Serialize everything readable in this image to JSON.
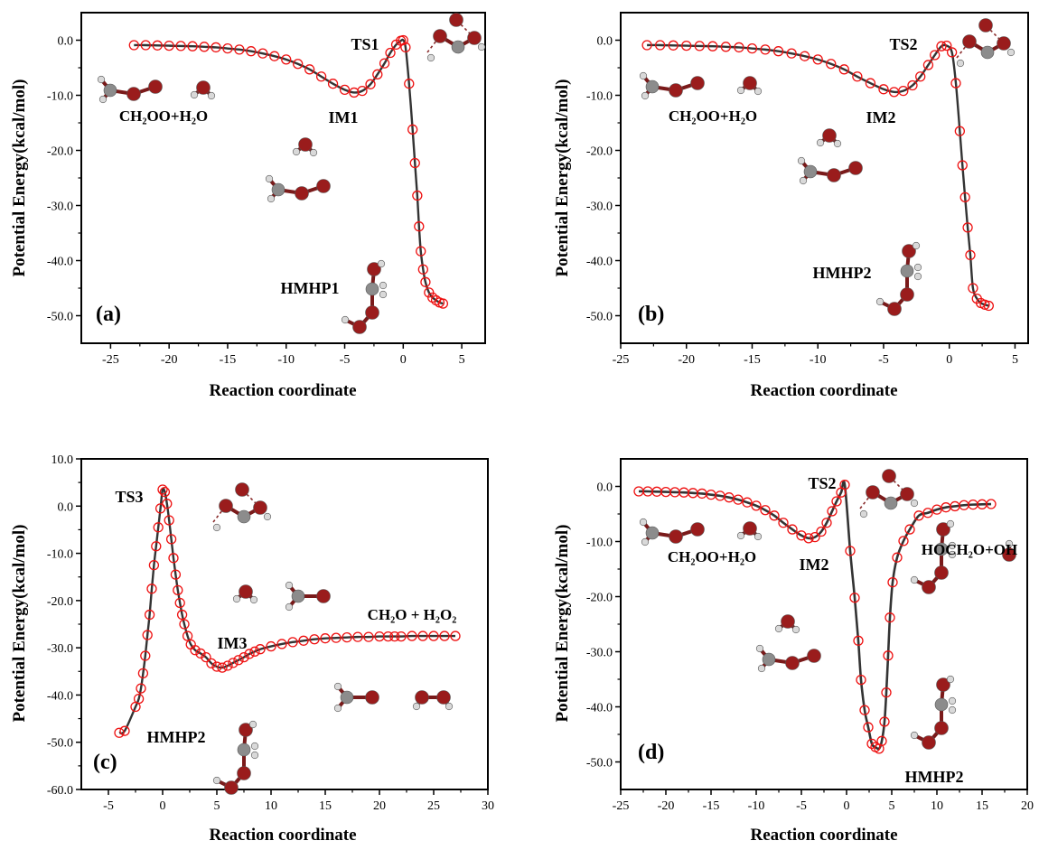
{
  "colors": {
    "curve": "#333333",
    "marker": "#ee1111",
    "oxygen": "#9a1c1c",
    "carbon": "#8c8c8c",
    "hydrogen": "#d9d9d9"
  },
  "chart_data": [
    {
      "type": "line",
      "panel_label": "(a)",
      "xlabel": "Reaction coordinate",
      "ylabel": "Potential Energy(kcal/mol)",
      "xlim": [
        -27.5,
        7
      ],
      "ylim": [
        -55,
        5
      ],
      "xticks": [
        -25,
        -20,
        -15,
        -10,
        -5,
        0,
        5
      ],
      "yticks": [
        0,
        -10,
        -20,
        -30,
        -40,
        -50
      ],
      "ytick_labels": [
        "0.0",
        "-10.0",
        "-20.0",
        "-30.0",
        "-40.0",
        "-50.0"
      ],
      "annotations": [
        {
          "text": "TS1",
          "x": -3.5,
          "y": -2
        },
        {
          "text": "CH₂OO+H₂O",
          "x": -20,
          "y": -14
        },
        {
          "text": "IM1",
          "x": -5.2,
          "y": -14.7
        },
        {
          "text": "HMHP1",
          "x": -7.5,
          "y": -46.8
        }
      ],
      "x": [
        -23,
        -22,
        -21,
        -20,
        -19,
        -18,
        -17,
        -16,
        -15,
        -14,
        -13,
        -12,
        -11,
        -10,
        -9,
        -8,
        -7,
        -6,
        -5,
        -4.2,
        -3.5,
        -2.8,
        -2.2,
        -1.6,
        -1.1,
        -0.6,
        -0.2,
        0,
        0.2,
        0.5,
        0.8,
        1.0,
        1.2,
        1.35,
        1.5,
        1.7,
        1.9,
        2.2,
        2.5,
        2.8,
        3.1,
        3.4
      ],
      "y": [
        -0.9,
        -0.9,
        -0.95,
        -1.0,
        -1.05,
        -1.1,
        -1.2,
        -1.3,
        -1.5,
        -1.7,
        -2.0,
        -2.4,
        -2.9,
        -3.5,
        -4.3,
        -5.3,
        -6.6,
        -7.9,
        -9.0,
        -9.5,
        -9.2,
        -8.0,
        -6.2,
        -4.2,
        -2.3,
        -0.8,
        -0.1,
        0.0,
        -1.3,
        -7.9,
        -16.2,
        -22.3,
        -28.2,
        -33.8,
        -38.3,
        -41.6,
        -43.9,
        -45.8,
        -46.7,
        -47.2,
        -47.6,
        -47.8
      ]
    },
    {
      "type": "line",
      "panel_label": "(b)",
      "xlabel": "Reaction coordinate",
      "ylabel": "Potential Energy(kcal/mol)",
      "xlim": [
        -25,
        6
      ],
      "ylim": [
        -55,
        5
      ],
      "xticks": [
        -25,
        -20,
        -15,
        -10,
        -5,
        0,
        5
      ],
      "yticks": [
        0,
        -10,
        -20,
        -30,
        -40,
        -50
      ],
      "ytick_labels": [
        "0.0",
        "-10.0",
        "-20.0",
        "-30.0",
        "-40.0",
        "-50.0"
      ],
      "annotations": [
        {
          "text": "TS2",
          "x": -1.8,
          "y": -2
        },
        {
          "text": "CH₂OO+H₂O",
          "x": -15,
          "y": -14
        },
        {
          "text": "IM2",
          "x": -3.4,
          "y": -14.3
        },
        {
          "text": "HMHP2",
          "x": -10.5,
          "y": -44.3
        }
      ],
      "x": [
        -23,
        -22,
        -21,
        -20,
        -19,
        -18,
        -17,
        -16,
        -15,
        -14,
        -13,
        -12,
        -11,
        -10,
        -9,
        -8,
        -7,
        -6,
        -5,
        -4.2,
        -3.5,
        -2.8,
        -2.2,
        -1.6,
        -1.1,
        -0.6,
        -0.2,
        0.2,
        0.5,
        0.8,
        1.0,
        1.2,
        1.4,
        1.6,
        1.8,
        2.1,
        2.4,
        2.7,
        3.0
      ],
      "y": [
        -0.9,
        -0.9,
        -0.95,
        -1.0,
        -1.05,
        -1.1,
        -1.2,
        -1.3,
        -1.5,
        -1.7,
        -2.0,
        -2.4,
        -2.9,
        -3.5,
        -4.3,
        -5.3,
        -6.6,
        -7.8,
        -8.9,
        -9.4,
        -9.2,
        -8.2,
        -6.6,
        -4.5,
        -2.7,
        -1.1,
        -1.0,
        -2.2,
        -7.8,
        -16.5,
        -22.7,
        -28.5,
        -34.0,
        -39.0,
        -45.0,
        -46.9,
        -47.7,
        -48.0,
        -48.2
      ]
    },
    {
      "type": "line",
      "panel_label": "(c)",
      "xlabel": "Reaction coordinate",
      "ylabel": "Potential Energy(kcal/mol)",
      "xlim": [
        -7.5,
        30
      ],
      "ylim": [
        -60,
        10
      ],
      "xticks": [
        -5,
        0,
        5,
        10,
        15,
        20,
        25,
        30
      ],
      "yticks": [
        10,
        0,
        -10,
        -20,
        -30,
        -40,
        -50,
        -60
      ],
      "ytick_labels": [
        "10.0",
        "0.0",
        "-10.0",
        "-20.0",
        "-30.0",
        "-40.0",
        "-50.0",
        "-60.0"
      ],
      "annotations": [
        {
          "text": "TS3",
          "x": -3.0,
          "y": 2.0
        },
        {
          "text": "CH₂O + H₂O₂",
          "x": 22.8,
          "y": -23
        },
        {
          "text": "IM3",
          "x": 6.0,
          "y": -29.5
        },
        {
          "text": "HMHP2",
          "x": 1.0,
          "y": -49.5
        }
      ],
      "x": [
        -4,
        -3.5,
        -2.5,
        -2.2,
        -2.0,
        -1.8,
        -1.6,
        -1.4,
        -1.2,
        -1.0,
        -0.8,
        -0.6,
        -0.4,
        -0.2,
        0,
        0.2,
        0.4,
        0.6,
        0.8,
        1.0,
        1.2,
        1.4,
        1.6,
        1.8,
        2.0,
        2.3,
        2.6,
        3.0,
        3.5,
        4.0,
        4.5,
        5.0,
        5.5,
        6.0,
        6.5,
        7.0,
        7.5,
        8.0,
        8.5,
        9.0,
        10,
        11,
        12,
        13,
        14,
        15,
        16,
        17,
        18,
        19,
        20,
        20.8,
        21.4,
        22,
        23,
        24,
        25,
        26,
        27
      ],
      "y": [
        -48,
        -47.6,
        -42.5,
        -40.8,
        -38.6,
        -35.4,
        -31.7,
        -27.3,
        -23.0,
        -17.5,
        -12.5,
        -8.5,
        -4.5,
        -0.5,
        3.5,
        3.0,
        0.5,
        -3.0,
        -7.0,
        -11.0,
        -14.5,
        -17.8,
        -20.5,
        -23.0,
        -25.0,
        -27.5,
        -29.3,
        -30.5,
        -31.2,
        -32.0,
        -33.3,
        -34.0,
        -34.2,
        -33.8,
        -33.2,
        -32.6,
        -32.0,
        -31.3,
        -30.8,
        -30.3,
        -29.7,
        -29.2,
        -28.8,
        -28.5,
        -28.2,
        -28.0,
        -27.9,
        -27.8,
        -27.7,
        -27.7,
        -27.6,
        -27.6,
        -27.6,
        -27.6,
        -27.5,
        -27.5,
        -27.5,
        -27.5,
        -27.5
      ]
    },
    {
      "type": "line",
      "panel_label": "(d)",
      "xlabel": "Reaction coordinate",
      "ylabel": "Potential Energy(kcal/mol)",
      "xlim": [
        -25,
        20
      ],
      "ylim": [
        -55,
        5
      ],
      "xticks": [
        -25,
        -20,
        -15,
        -10,
        -5,
        0,
        5,
        10,
        15,
        20
      ],
      "yticks": [
        0,
        -10,
        -20,
        -30,
        -40,
        -50
      ],
      "ytick_labels": [
        "0.0",
        "-10.0",
        "-20.0",
        "-30.0",
        "-40.0",
        "-50.0"
      ],
      "annotations": [
        {
          "text": "TS2",
          "x": -2.8,
          "y": 1.5
        },
        {
          "text": "CH₂OO+H₂O",
          "x": -15,
          "y": -13.5
        },
        {
          "text": "IM2",
          "x": -3.9,
          "y": -14.8
        },
        {
          "text": "HOCH₂O+OH",
          "x": 12.8,
          "y": -13
        },
        {
          "text": "HMHP2",
          "x": 7.8,
          "y": -49.5
        }
      ],
      "x": [
        -23,
        -22,
        -21,
        -20,
        -19,
        -18,
        -17,
        -16,
        -15,
        -14,
        -13,
        -12,
        -11,
        -10,
        -9,
        -8,
        -7,
        -6,
        -5,
        -4.2,
        -3.5,
        -2.8,
        -2.2,
        -1.6,
        -1.1,
        -0.6,
        -0.2,
        0.4,
        0.9,
        1.3,
        1.6,
        2.0,
        2.4,
        2.8,
        3.2,
        3.6,
        3.9,
        4.2,
        4.4,
        4.6,
        4.8,
        5.1,
        5.6,
        6.3,
        7,
        8,
        9,
        10,
        11,
        12,
        13,
        14,
        15,
        16
      ],
      "y": [
        -0.9,
        -0.9,
        -0.95,
        -1.0,
        -1.05,
        -1.1,
        -1.2,
        -1.3,
        -1.5,
        -1.7,
        -2.0,
        -2.4,
        -2.9,
        -3.5,
        -4.3,
        -5.3,
        -6.6,
        -7.8,
        -8.9,
        -9.4,
        -9.2,
        -8.2,
        -6.6,
        -4.5,
        -2.7,
        -1.1,
        0.3,
        -11.7,
        -20.2,
        -28.0,
        -35.1,
        -40.6,
        -43.7,
        -46.7,
        -47.3,
        -47.6,
        -46.2,
        -42.7,
        -37.4,
        -30.7,
        -23.8,
        -17.4,
        -12.9,
        -9.9,
        -7.8,
        -5.3,
        -4.8,
        -4.2,
        -3.8,
        -3.6,
        -3.4,
        -3.3,
        -3.25,
        -3.2
      ]
    }
  ]
}
